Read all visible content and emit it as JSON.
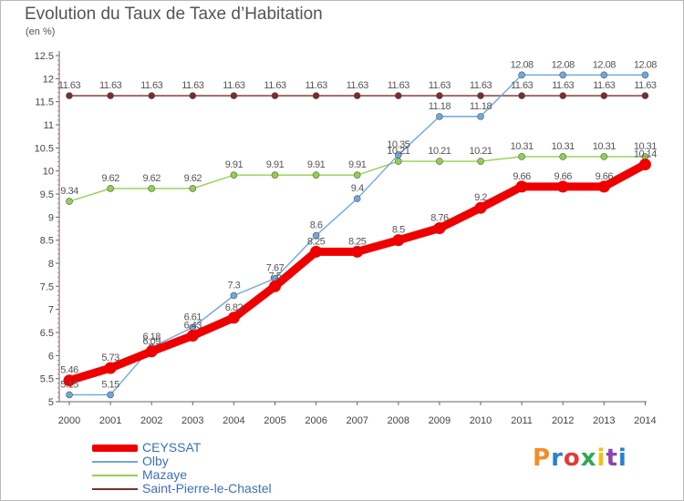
{
  "title": "Evolution du Taux de Taxe d’Habitation",
  "unit": "(en %)",
  "logo_text": "Proxiti",
  "chart_data": {
    "type": "line",
    "title": "Evolution du Taux de Taxe d’Habitation",
    "ylabel": "(en %)",
    "x": [
      2000,
      2001,
      2002,
      2003,
      2004,
      2005,
      2006,
      2007,
      2008,
      2009,
      2010,
      2011,
      2012,
      2013,
      2014
    ],
    "ylim": [
      5,
      12.5
    ],
    "yticks": [
      "5",
      "5.5",
      "6",
      "6.5",
      "7",
      "7.5",
      "8",
      "8.5",
      "9",
      "9.5",
      "10",
      "10.5",
      "11",
      "11.5",
      "12",
      "12.5"
    ],
    "legend_position": "bottom-left",
    "grid": false,
    "series": [
      {
        "name": "CEYSSAT",
        "color": "#ee0000",
        "values": [
          5.46,
          5.73,
          6.09,
          6.43,
          6.82,
          7.5,
          8.25,
          8.25,
          8.5,
          8.76,
          9.2,
          9.66,
          9.66,
          9.66,
          10.14
        ]
      },
      {
        "name": "Olby",
        "color": "#6fa8dc",
        "values": [
          5.15,
          5.15,
          6.18,
          6.61,
          7.3,
          7.67,
          8.6,
          9.4,
          10.35,
          11.18,
          11.18,
          12.08,
          12.08,
          12.08,
          12.08
        ]
      },
      {
        "name": "Mazaye",
        "color": "#92d050",
        "values": [
          9.34,
          9.62,
          9.62,
          9.62,
          9.91,
          9.91,
          9.91,
          9.91,
          10.21,
          10.21,
          10.21,
          10.31,
          10.31,
          10.31,
          10.31
        ]
      },
      {
        "name": "Saint-Pierre-le-Chastel",
        "color": "#7b2c2c",
        "values": [
          11.63,
          11.63,
          11.63,
          11.63,
          11.63,
          11.63,
          11.63,
          11.63,
          11.63,
          11.63,
          11.63,
          11.63,
          11.63,
          11.63,
          11.63
        ]
      }
    ],
    "point_labels": {
      "CEYSSAT": [
        "5.46",
        "5.73",
        "6.09",
        "6.43",
        "6.82",
        "7.5",
        "8.25",
        "8.25",
        "8.5",
        "8.76",
        "9.2",
        "9.66",
        "9.66",
        "9.66",
        "10.14"
      ],
      "Olby": [
        "5.15",
        "5.15",
        "6.18",
        "6.61",
        "7.3",
        "7.67",
        "8.6",
        "9.4",
        "10.35",
        "11.18",
        "11.18",
        "12.08",
        "12.08",
        "12.08",
        "12.08"
      ],
      "Mazaye": [
        "9.34",
        "9.62",
        "9.62",
        "9.62",
        "9.91",
        "9.91",
        "9.91",
        "9.91",
        "10.21",
        "10.21",
        "10.21",
        "10.31",
        "10.31",
        "10.31",
        "10.31"
      ],
      "Saint-Pierre-le-Chastel": [
        "11.63",
        "11.63",
        "11.63",
        "11.63",
        "11.63",
        "11.63",
        "11.63",
        "11.63",
        "11.63",
        "11.63",
        "11.63",
        "11.63",
        "11.63",
        "11.63",
        "11.63"
      ]
    }
  }
}
